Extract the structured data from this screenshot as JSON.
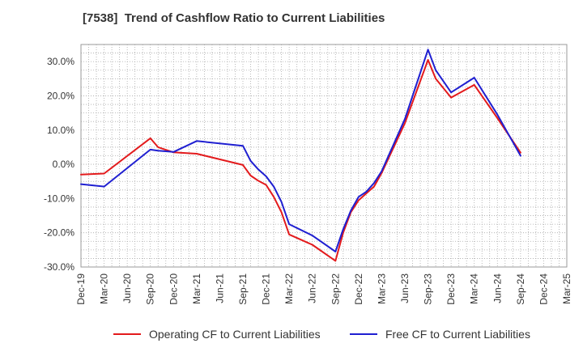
{
  "chart_data": {
    "type": "line",
    "title": "[7538]  Trend of Cashflow Ratio to Current Liabilities",
    "xlabel": "",
    "ylabel": "",
    "ylim": [
      -30,
      35
    ],
    "y_ticks": [
      "30.0%",
      "20.0%",
      "10.0%",
      "0.0%",
      "-10.0%",
      "-20.0%",
      "-30.0%"
    ],
    "y_tick_values": [
      30,
      20,
      10,
      0,
      -10,
      -20,
      -30
    ],
    "x_ticks": [
      "Dec-19",
      "Mar-20",
      "Jun-20",
      "Sep-20",
      "Dec-20",
      "Mar-21",
      "Jun-21",
      "Sep-21",
      "Dec-21",
      "Mar-22",
      "Jun-22",
      "Sep-22",
      "Dec-22",
      "Mar-23",
      "Jun-23",
      "Sep-23",
      "Dec-23",
      "Mar-24",
      "Jun-24",
      "Sep-24",
      "Dec-24",
      "Mar-25"
    ],
    "x": [
      "Dec-19",
      "Mar-20",
      "Sep-20",
      "Oct-20",
      "Dec-20",
      "Mar-21",
      "Sep-21",
      "Oct-21",
      "Nov-21",
      "Dec-21",
      "Jan-22",
      "Feb-22",
      "Mar-22",
      "Jun-22",
      "Sep-22",
      "Oct-22",
      "Nov-22",
      "Dec-22",
      "Jan-23",
      "Feb-23",
      "Mar-23",
      "Jun-23",
      "Sep-23",
      "Oct-23",
      "Dec-23",
      "Mar-24",
      "Jun-24",
      "Sep-24"
    ],
    "x_index": [
      0,
      3,
      9,
      10,
      12,
      15,
      21,
      22,
      23,
      24,
      25,
      26,
      27,
      30,
      33,
      34,
      35,
      36,
      37,
      38,
      39,
      42,
      45,
      46,
      48,
      51,
      54,
      57
    ],
    "series": [
      {
        "name": "Operating CF to Current Liabilities",
        "color": "#e31a1c",
        "values": [
          -3.0,
          -2.7,
          7.6,
          5.0,
          3.5,
          3.1,
          -0.2,
          -3.3,
          -4.8,
          -6.0,
          -9.5,
          -14.0,
          -20.5,
          -23.5,
          -28.2,
          -20.0,
          -14.0,
          -10.5,
          -8.5,
          -6.5,
          -2.5,
          12.0,
          30.5,
          25.0,
          19.5,
          23.2,
          13.5,
          3.4
        ]
      },
      {
        "name": "Free CF to Current Liabilities",
        "color": "#1f1fd1",
        "values": [
          -5.8,
          -6.5,
          4.3,
          4.0,
          3.6,
          6.8,
          5.4,
          1.0,
          -1.5,
          -3.5,
          -6.5,
          -11.0,
          -17.5,
          -20.8,
          -25.5,
          -19.0,
          -13.5,
          -9.5,
          -8.0,
          -5.5,
          -2.0,
          13.2,
          33.5,
          27.5,
          21.0,
          25.3,
          14.5,
          2.5
        ]
      }
    ],
    "grid": true,
    "legend_position": "bottom"
  }
}
